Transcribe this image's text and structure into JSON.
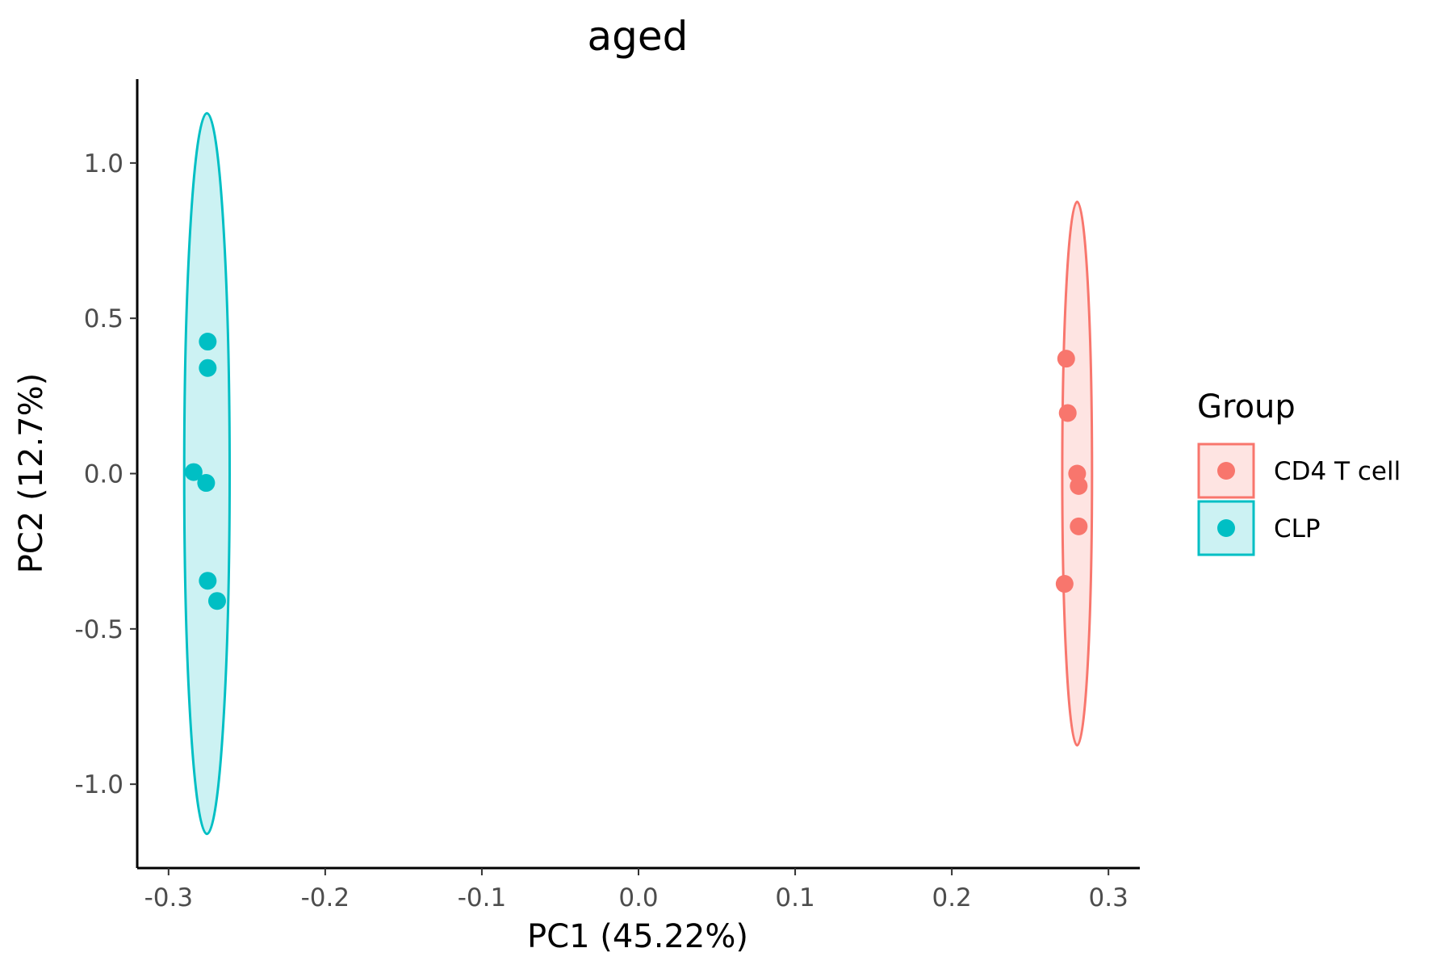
{
  "chart_data": {
    "type": "scatter",
    "title": "aged",
    "xlabel": "PC1 (45.22%)",
    "ylabel": "PC2 (12.7%)",
    "xlim": [
      -0.32,
      0.32
    ],
    "ylim": [
      -1.27,
      1.27
    ],
    "x_ticks": [
      {
        "value": -0.3,
        "label": "-0.3"
      },
      {
        "value": -0.2,
        "label": "-0.2"
      },
      {
        "value": -0.1,
        "label": "-0.1"
      },
      {
        "value": 0.0,
        "label": "0.0"
      },
      {
        "value": 0.1,
        "label": "0.1"
      },
      {
        "value": 0.2,
        "label": "0.2"
      },
      {
        "value": 0.3,
        "label": "0.3"
      }
    ],
    "y_ticks": [
      {
        "value": -1.0,
        "label": "-1.0"
      },
      {
        "value": -0.5,
        "label": "-0.5"
      },
      {
        "value": 0.0,
        "label": "0.0"
      },
      {
        "value": 0.5,
        "label": "0.5"
      },
      {
        "value": 1.0,
        "label": "1.0"
      }
    ],
    "grid": false,
    "legend": {
      "title": "Group",
      "position": "right"
    },
    "series": [
      {
        "name": "CD4 T cell",
        "color": "#F8766D",
        "points": [
          {
            "x": 0.273,
            "y": 0.37
          },
          {
            "x": 0.274,
            "y": 0.195
          },
          {
            "x": 0.28,
            "y": 0.0
          },
          {
            "x": 0.281,
            "y": -0.04
          },
          {
            "x": 0.281,
            "y": -0.17
          },
          {
            "x": 0.272,
            "y": -0.355
          }
        ],
        "ellipse": {
          "x_min": 0.2705,
          "x_max": 0.2895,
          "y_min": -0.875,
          "y_max": 0.875
        }
      },
      {
        "name": "CLP",
        "color": "#00BFC4",
        "points": [
          {
            "x": -0.275,
            "y": 0.425
          },
          {
            "x": -0.275,
            "y": 0.34
          },
          {
            "x": -0.284,
            "y": 0.005
          },
          {
            "x": -0.276,
            "y": -0.03
          },
          {
            "x": -0.275,
            "y": -0.345
          },
          {
            "x": -0.269,
            "y": -0.41
          }
        ],
        "ellipse": {
          "x_min": -0.29,
          "x_max": -0.261,
          "y_min": -1.16,
          "y_max": 1.16
        }
      }
    ]
  }
}
